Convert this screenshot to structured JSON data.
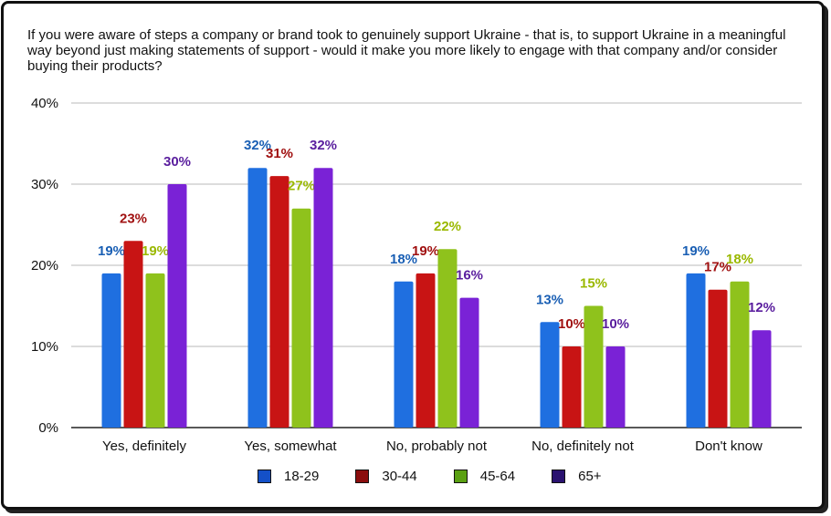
{
  "chart_data": {
    "type": "bar",
    "title": "If you were aware of steps a company or brand took to genuinely support Ukraine - that is, to support Ukraine in a meaningful way beyond just making statements of support - would it make you more likely to engage with that company and/or consider buying their products?",
    "categories": [
      "Yes, definitely",
      "Yes, somewhat",
      "No, probably not",
      "No, definitely not",
      "Don't know"
    ],
    "series": [
      {
        "name": "18-29",
        "color": "#1f6fe0",
        "legend_color": "#1450c8",
        "label_color": "#1a5fb4",
        "values": [
          19,
          32,
          18,
          13,
          19
        ],
        "labels": [
          "19%",
          "32%",
          "18%",
          "13%",
          "19%"
        ]
      },
      {
        "name": "30-44",
        "color": "#c81414",
        "legend_color": "#8b0d0d",
        "label_color": "#a01010",
        "values": [
          23,
          31,
          19,
          10,
          17
        ],
        "labels": [
          "23%",
          "31%",
          "19%",
          "10%",
          "17%"
        ]
      },
      {
        "name": "45-64",
        "color": "#8fc21c",
        "legend_color": "#5aa012",
        "label_color": "#9ab800",
        "values": [
          19,
          27,
          22,
          15,
          18
        ],
        "labels": [
          "19%",
          "27%",
          "22%",
          "15%",
          "18%"
        ]
      },
      {
        "name": "65+",
        "color": "#7a22d6",
        "legend_color": "#2a1270",
        "label_color": "#5a1e9e",
        "values": [
          30,
          32,
          16,
          10,
          12
        ],
        "labels": [
          "30%",
          "32%",
          "16%",
          "10%",
          "12%"
        ]
      }
    ],
    "ylim": [
      0,
      40
    ],
    "yticks": [
      0,
      10,
      20,
      30,
      40
    ],
    "ytick_labels": [
      "0%",
      "10%",
      "20%",
      "30%",
      "40%"
    ],
    "grid": true,
    "legend": "bottom-center"
  }
}
